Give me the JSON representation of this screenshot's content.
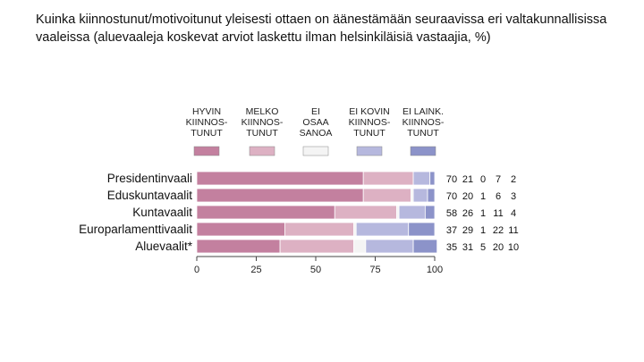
{
  "header": {
    "title_line1": "Kuinka kiinnostunut/motivoitunut yleisesti ottaen on äänestämään seuraavissa eri valtakunnallisissa",
    "title_line2": "vaaleissa (aluevaaleja koskevat arviot laskettu ilman helsinkiläisiä vastaajia, %)"
  },
  "chart_data": {
    "type": "bar",
    "orientation": "horizontal",
    "stacked": true,
    "categories": [
      "Presidentinvaali",
      "Eduskuntavaalit",
      "Kuntavaalit",
      "Europarlamenttivaalit",
      "Aluevaalit*"
    ],
    "series": [
      {
        "name": [
          "HYVIN",
          "KIINNOS-",
          "TUNUT"
        ],
        "color": "#c3809f",
        "values": [
          70,
          70,
          58,
          37,
          35
        ]
      },
      {
        "name": [
          "MELKO",
          "KIINNOS-",
          "TUNUT"
        ],
        "color": "#ddb1c3",
        "values": [
          21,
          20,
          26,
          29,
          31
        ]
      },
      {
        "name": [
          "EI",
          "OSAA",
          "SANOA"
        ],
        "color": "#f4f4f4",
        "values": [
          0,
          1,
          1,
          1,
          5
        ]
      },
      {
        "name": [
          "EI KOVIN",
          "KIINNOS-",
          "TUNUT"
        ],
        "color": "#b6b8de",
        "values": [
          7,
          6,
          11,
          22,
          20
        ]
      },
      {
        "name": [
          "EI LAINK.",
          "KIINNOS-",
          "TUNUT"
        ],
        "color": "#8c93c9",
        "values": [
          2,
          3,
          4,
          11,
          10
        ]
      }
    ],
    "xlim": [
      0,
      100
    ],
    "xticks": [
      0,
      25,
      50,
      75,
      100
    ],
    "legend": "top",
    "value_table": "right"
  }
}
